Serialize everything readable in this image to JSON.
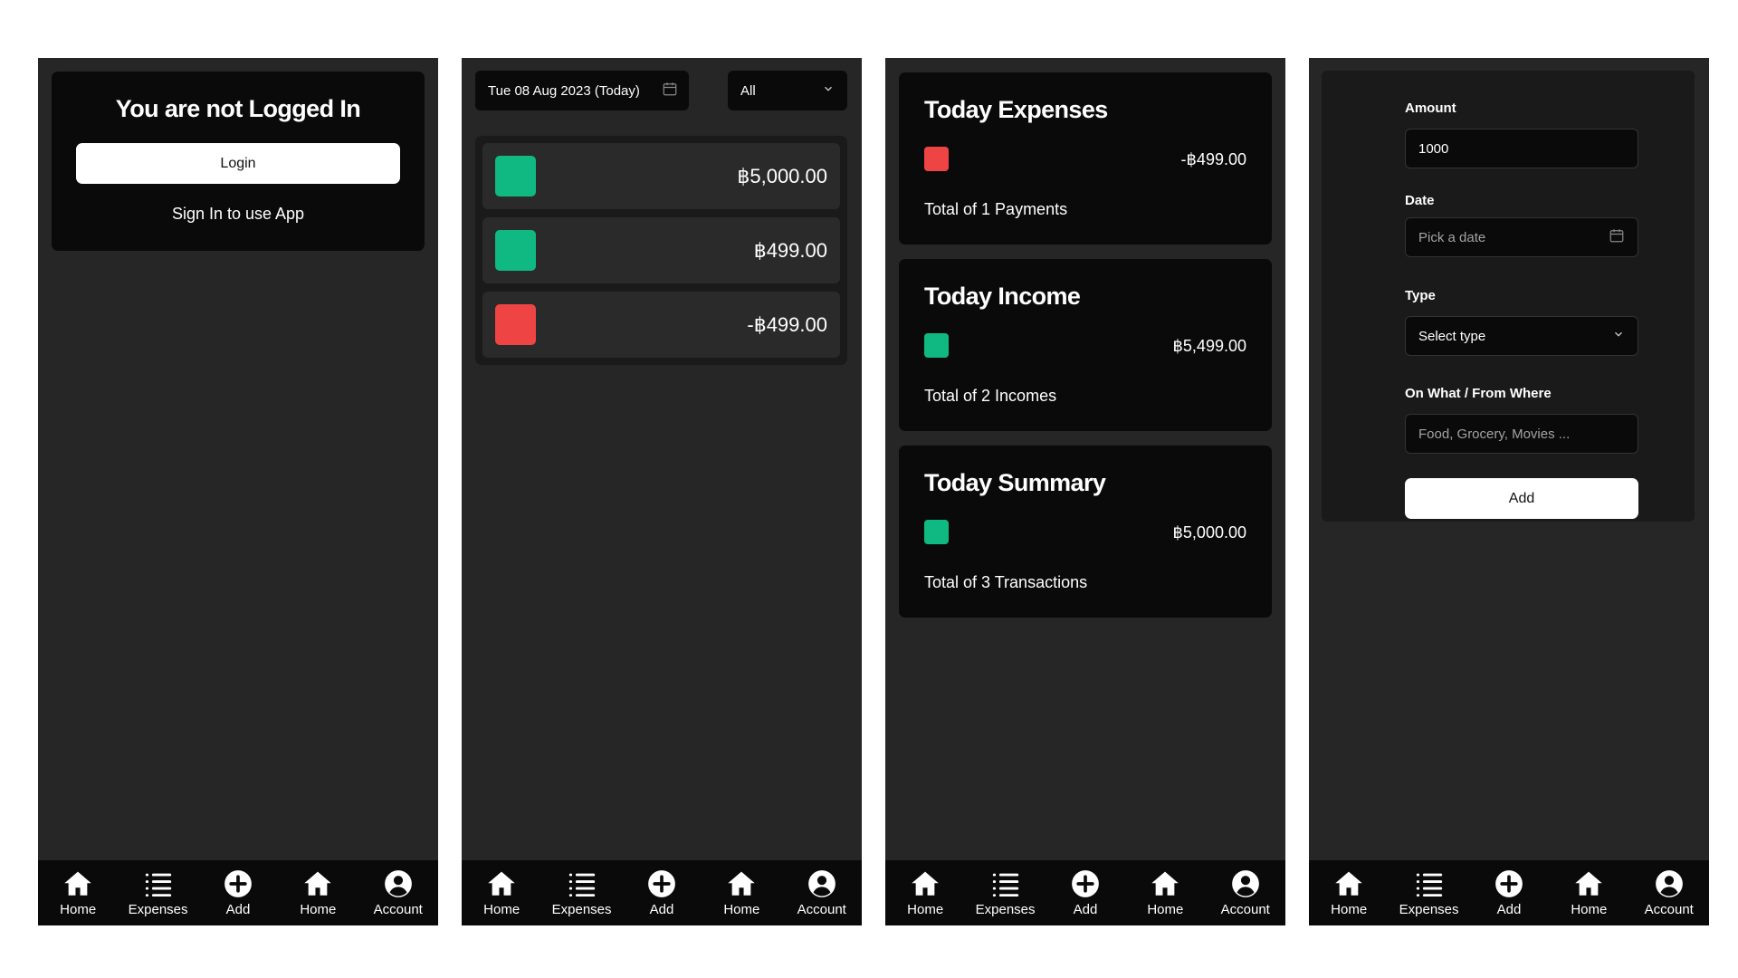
{
  "colors": {
    "income": "#10b981",
    "expense": "#ef4444",
    "panel_bg": "#262626",
    "card_bg": "#0a0a0a"
  },
  "nav": [
    {
      "label": "Home",
      "icon": "home-icon"
    },
    {
      "label": "Expenses",
      "icon": "list-icon"
    },
    {
      "label": "Add",
      "icon": "plus-circle-icon"
    },
    {
      "label": "Home",
      "icon": "home-icon"
    },
    {
      "label": "Account",
      "icon": "account-icon"
    }
  ],
  "login": {
    "title": "You are not Logged In",
    "button": "Login",
    "subtitle": "Sign In to use App"
  },
  "transactions": {
    "date": "Tue 08 Aug 2023 (Today)",
    "filter": "All",
    "items": [
      {
        "amount": "฿5,000.00",
        "kind": "income"
      },
      {
        "amount": "฿499.00",
        "kind": "income"
      },
      {
        "amount": "-฿499.00",
        "kind": "expense"
      }
    ]
  },
  "summary": {
    "cards": [
      {
        "title": "Today Expenses",
        "amount": "-฿499.00",
        "caption": "Total of 1 Payments",
        "kind": "expense"
      },
      {
        "title": "Today Income",
        "amount": "฿5,499.00",
        "caption": "Total of 2 Incomes",
        "kind": "income"
      },
      {
        "title": "Today Summary",
        "amount": "฿5,000.00",
        "caption": "Total of 3 Transactions",
        "kind": "income"
      }
    ]
  },
  "form": {
    "amount_label": "Amount",
    "amount_value": "1000",
    "date_label": "Date",
    "date_placeholder": "Pick a date",
    "type_label": "Type",
    "type_value": "Select type",
    "source_label": "On What / From Where",
    "source_placeholder": "Food, Grocery, Movies ...",
    "submit": "Add"
  }
}
